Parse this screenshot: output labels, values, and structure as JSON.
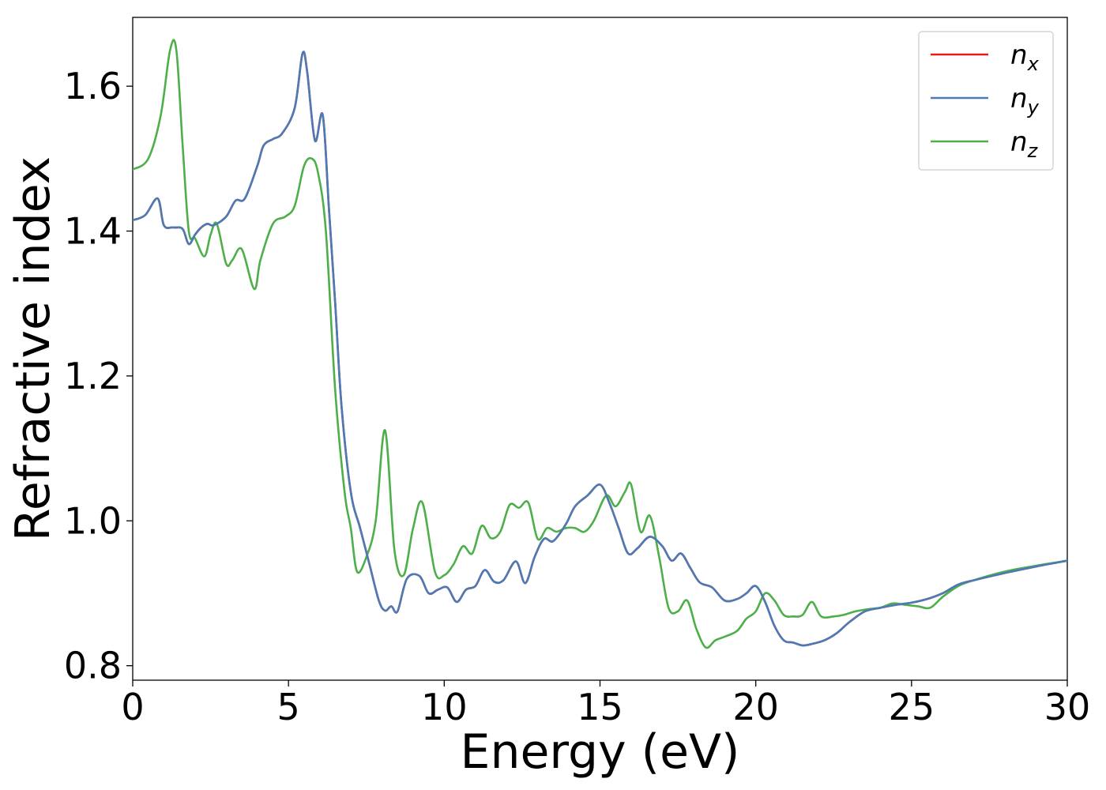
{
  "chart_data": {
    "type": "line",
    "xlabel": "Energy (eV)",
    "ylabel": "Refractive index",
    "xlim": [
      0,
      30
    ],
    "ylim": [
      0.78,
      1.695
    ],
    "xticks": [
      0,
      5,
      10,
      15,
      20,
      25,
      30
    ],
    "xtick_labels": [
      "0",
      "5",
      "10",
      "15",
      "20",
      "25",
      "30"
    ],
    "yticks": [
      0.8,
      1.0,
      1.2,
      1.4,
      1.6
    ],
    "ytick_labels": [
      "0.8",
      "1.0",
      "1.2",
      "1.4",
      "1.6"
    ],
    "grid": false,
    "legend_position": "top-right",
    "series": [
      {
        "name": "n",
        "sub": "x",
        "color": "#e41a1c",
        "x": [
          0,
          0.4,
          0.8,
          1.0,
          1.3,
          1.6,
          1.8,
          2.0,
          2.2,
          2.4,
          2.6,
          3.0,
          3.3,
          3.6,
          4.0,
          4.2,
          4.5,
          4.8,
          5.2,
          5.45,
          5.6,
          5.85,
          6.1,
          6.3,
          6.5,
          6.7,
          7.0,
          7.3,
          7.6,
          7.9,
          8.1,
          8.3,
          8.5,
          8.8,
          9.2,
          9.5,
          9.8,
          10.1,
          10.4,
          10.7,
          11.0,
          11.3,
          11.6,
          11.9,
          12.3,
          12.6,
          12.9,
          13.2,
          13.5,
          13.9,
          14.2,
          14.6,
          15.0,
          15.3,
          15.6,
          15.9,
          16.2,
          16.6,
          17.0,
          17.3,
          17.6,
          17.9,
          18.2,
          18.6,
          19.0,
          19.4,
          19.7,
          20.0,
          20.3,
          20.6,
          20.9,
          21.2,
          21.5,
          21.8,
          22.2,
          22.6,
          23.0,
          23.5,
          24.0,
          24.5,
          25.0,
          25.5,
          26.0,
          26.5,
          27.0,
          28.0,
          29.0,
          30.0
        ],
        "values": [
          1.415,
          1.422,
          1.445,
          1.408,
          1.405,
          1.403,
          1.382,
          1.395,
          1.405,
          1.41,
          1.408,
          1.42,
          1.442,
          1.445,
          1.49,
          1.518,
          1.527,
          1.535,
          1.57,
          1.645,
          1.62,
          1.525,
          1.56,
          1.43,
          1.3,
          1.16,
          1.04,
          0.99,
          0.94,
          0.89,
          0.876,
          0.882,
          0.875,
          0.92,
          0.924,
          0.9,
          0.905,
          0.908,
          0.888,
          0.905,
          0.91,
          0.932,
          0.916,
          0.918,
          0.944,
          0.914,
          0.95,
          0.975,
          0.972,
          0.995,
          1.02,
          1.035,
          1.05,
          1.025,
          0.99,
          0.955,
          0.962,
          0.978,
          0.965,
          0.945,
          0.955,
          0.935,
          0.915,
          0.908,
          0.89,
          0.892,
          0.9,
          0.91,
          0.888,
          0.855,
          0.835,
          0.832,
          0.828,
          0.83,
          0.835,
          0.845,
          0.86,
          0.875,
          0.88,
          0.884,
          0.887,
          0.892,
          0.9,
          0.912,
          0.918,
          0.928,
          0.937,
          0.945
        ]
      },
      {
        "name": "n",
        "sub": "y",
        "color": "#4a7bb5",
        "x": [
          0,
          0.4,
          0.8,
          1.0,
          1.3,
          1.6,
          1.8,
          2.0,
          2.2,
          2.4,
          2.6,
          3.0,
          3.3,
          3.6,
          4.0,
          4.2,
          4.5,
          4.8,
          5.2,
          5.45,
          5.6,
          5.85,
          6.1,
          6.3,
          6.5,
          6.7,
          7.0,
          7.3,
          7.6,
          7.9,
          8.1,
          8.3,
          8.5,
          8.8,
          9.2,
          9.5,
          9.8,
          10.1,
          10.4,
          10.7,
          11.0,
          11.3,
          11.6,
          11.9,
          12.3,
          12.6,
          12.9,
          13.2,
          13.5,
          13.9,
          14.2,
          14.6,
          15.0,
          15.3,
          15.6,
          15.9,
          16.2,
          16.6,
          17.0,
          17.3,
          17.6,
          17.9,
          18.2,
          18.6,
          19.0,
          19.4,
          19.7,
          20.0,
          20.3,
          20.6,
          20.9,
          21.2,
          21.5,
          21.8,
          22.2,
          22.6,
          23.0,
          23.5,
          24.0,
          24.5,
          25.0,
          25.5,
          26.0,
          26.5,
          27.0,
          28.0,
          29.0,
          30.0
        ],
        "values": [
          1.415,
          1.422,
          1.445,
          1.408,
          1.405,
          1.403,
          1.382,
          1.395,
          1.405,
          1.41,
          1.408,
          1.42,
          1.442,
          1.445,
          1.49,
          1.518,
          1.527,
          1.535,
          1.57,
          1.645,
          1.62,
          1.525,
          1.56,
          1.43,
          1.3,
          1.16,
          1.04,
          0.99,
          0.94,
          0.89,
          0.876,
          0.882,
          0.875,
          0.92,
          0.924,
          0.9,
          0.905,
          0.908,
          0.888,
          0.905,
          0.91,
          0.932,
          0.916,
          0.918,
          0.944,
          0.914,
          0.95,
          0.975,
          0.972,
          0.995,
          1.02,
          1.035,
          1.05,
          1.025,
          0.99,
          0.955,
          0.962,
          0.978,
          0.965,
          0.945,
          0.955,
          0.935,
          0.915,
          0.908,
          0.89,
          0.892,
          0.9,
          0.91,
          0.888,
          0.855,
          0.835,
          0.832,
          0.828,
          0.83,
          0.835,
          0.845,
          0.86,
          0.875,
          0.88,
          0.884,
          0.887,
          0.892,
          0.9,
          0.912,
          0.918,
          0.928,
          0.937,
          0.945
        ]
      },
      {
        "name": "n",
        "sub": "z",
        "color": "#4daf4a",
        "x": [
          0,
          0.5,
          0.9,
          1.2,
          1.4,
          1.6,
          1.8,
          2.0,
          2.3,
          2.5,
          2.7,
          3.0,
          3.2,
          3.5,
          3.9,
          4.1,
          4.5,
          4.9,
          5.2,
          5.5,
          5.75,
          5.95,
          6.2,
          6.5,
          6.8,
          7.0,
          7.2,
          7.5,
          7.8,
          8.1,
          8.4,
          8.7,
          9.0,
          9.3,
          9.7,
          10.0,
          10.3,
          10.6,
          10.9,
          11.2,
          11.5,
          11.8,
          12.1,
          12.4,
          12.7,
          13.0,
          13.3,
          13.6,
          13.9,
          14.2,
          14.5,
          14.8,
          15.2,
          15.5,
          15.8,
          16.0,
          16.3,
          16.6,
          16.9,
          17.2,
          17.5,
          17.8,
          18.1,
          18.4,
          18.7,
          19.0,
          19.4,
          19.7,
          20.0,
          20.3,
          20.6,
          20.9,
          21.2,
          21.5,
          21.8,
          22.1,
          22.5,
          22.8,
          23.2,
          23.6,
          24.0,
          24.4,
          24.8,
          25.2,
          25.6,
          26.0,
          26.5,
          27.0,
          28.0,
          29.0,
          30.0
        ],
        "values": [
          1.485,
          1.5,
          1.56,
          1.65,
          1.65,
          1.52,
          1.4,
          1.39,
          1.365,
          1.395,
          1.41,
          1.355,
          1.36,
          1.375,
          1.32,
          1.36,
          1.41,
          1.42,
          1.435,
          1.49,
          1.5,
          1.48,
          1.4,
          1.18,
          1.04,
          0.99,
          0.93,
          0.95,
          1.0,
          1.125,
          0.96,
          0.925,
          0.99,
          1.025,
          0.93,
          0.925,
          0.94,
          0.965,
          0.955,
          0.993,
          0.976,
          0.985,
          1.022,
          1.018,
          1.025,
          0.975,
          0.99,
          0.985,
          0.99,
          0.99,
          0.985,
          1.0,
          1.035,
          1.02,
          1.04,
          1.05,
          0.985,
          1.007,
          0.95,
          0.88,
          0.875,
          0.89,
          0.85,
          0.825,
          0.835,
          0.84,
          0.848,
          0.865,
          0.875,
          0.9,
          0.89,
          0.87,
          0.868,
          0.87,
          0.888,
          0.868,
          0.868,
          0.87,
          0.875,
          0.878,
          0.88,
          0.886,
          0.884,
          0.882,
          0.88,
          0.895,
          0.91,
          0.918,
          0.93,
          0.938,
          0.945
        ]
      }
    ]
  }
}
